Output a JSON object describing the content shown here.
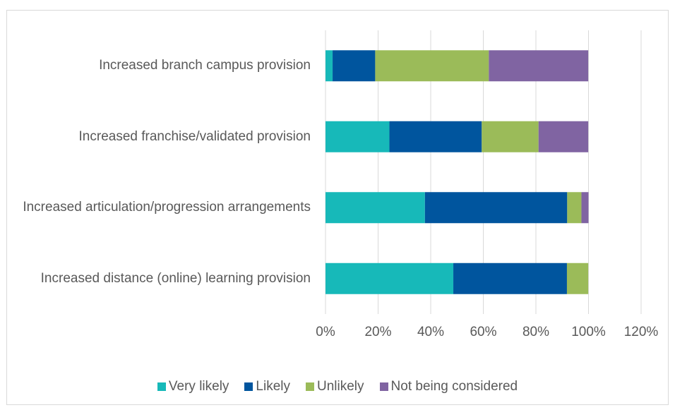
{
  "chart_data": {
    "type": "stacked_barh",
    "categories": [
      "Increased branch campus provision",
      "Increased franchise/validated provision",
      "Increased articulation/progression arrangements",
      "Increased distance (online) learning provision"
    ],
    "series": [
      {
        "name": "Very likely",
        "color": "#17b9b9",
        "values": [
          2.7,
          24.3,
          37.8,
          48.6
        ]
      },
      {
        "name": "Likely",
        "color": "#00559e",
        "values": [
          16.2,
          35.1,
          54.1,
          43.2
        ]
      },
      {
        "name": "Unlikely",
        "color": "#9bbb59",
        "values": [
          43.2,
          21.6,
          5.4,
          8.1
        ]
      },
      {
        "name": "Not being considered",
        "color": "#8064a2",
        "values": [
          37.8,
          18.9,
          2.7,
          0
        ]
      }
    ],
    "xlim": [
      0,
      120
    ],
    "xticks": [
      {
        "value": 0,
        "label": "0%"
      },
      {
        "value": 20,
        "label": "20%"
      },
      {
        "value": 40,
        "label": "40%"
      },
      {
        "value": 60,
        "label": "60%"
      },
      {
        "value": 80,
        "label": "80%"
      },
      {
        "value": 100,
        "label": "100%"
      },
      {
        "value": 120,
        "label": "120%"
      }
    ],
    "grid": true,
    "legend": "bottom"
  }
}
